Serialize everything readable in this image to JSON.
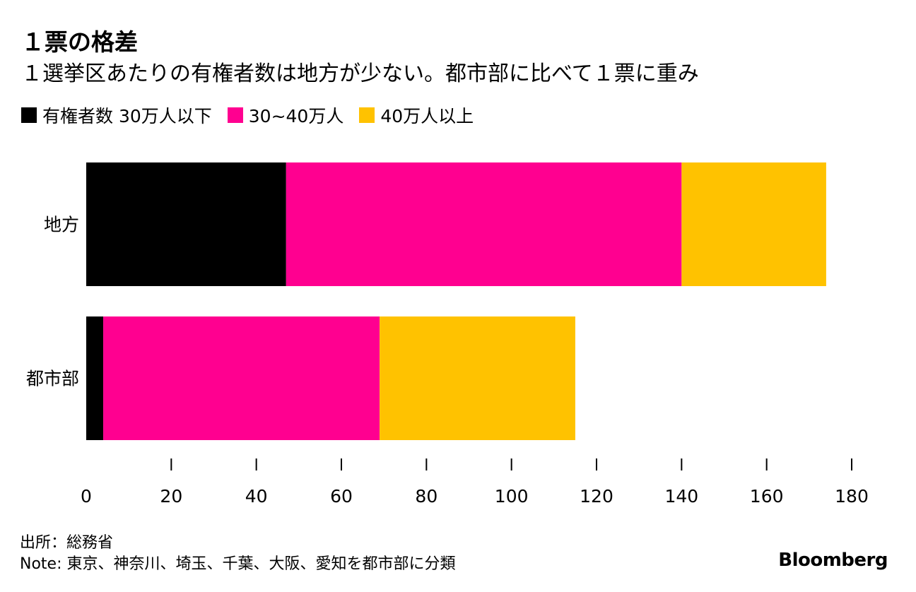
{
  "chart_data": {
    "type": "bar",
    "orientation": "horizontal",
    "stacked": true,
    "title": "１票の格差",
    "subtitle": "１選挙区あたりの有権者数は地方が少ない。都市部に比べて１票に重み",
    "categories": [
      "地方",
      "都市部"
    ],
    "series": [
      {
        "name": "有権者数 30万人以下",
        "color": "#000000",
        "values": [
          47,
          4
        ]
      },
      {
        "name": "30~40万人",
        "color": "#ff0090",
        "values": [
          93,
          65
        ]
      },
      {
        "name": "40万人以上",
        "color": "#ffc200",
        "values": [
          34,
          46
        ]
      }
    ],
    "xlim": [
      0,
      180
    ],
    "xticks": [
      0,
      20,
      40,
      60,
      80,
      100,
      120,
      140,
      160,
      180
    ],
    "xlabel": "",
    "ylabel": "",
    "grid": false,
    "legend_position": "top-left"
  },
  "footer": {
    "source": "出所：総務省",
    "note": "Note: 東京、神奈川、埼玉、千葉、大阪、愛知を都市部に分類",
    "brand": "Bloomberg"
  }
}
